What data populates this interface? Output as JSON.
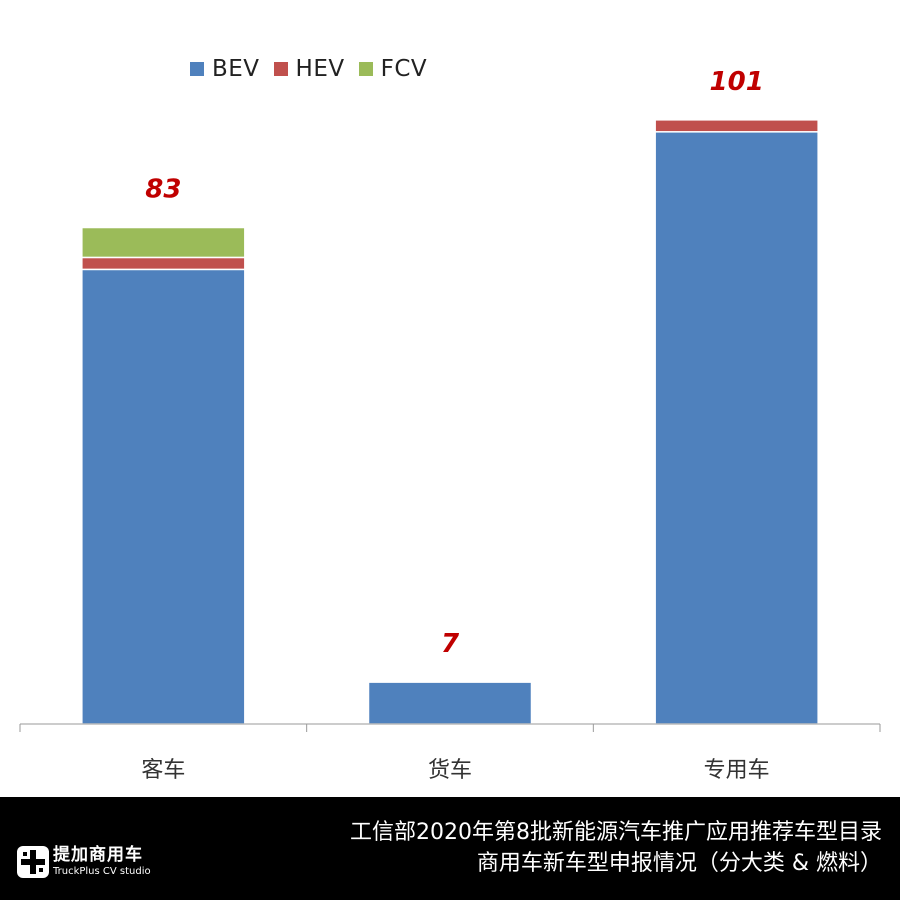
{
  "chart_data": {
    "type": "bar",
    "stacked": true,
    "categories": [
      "客车",
      "货车",
      "专用车"
    ],
    "series": [
      {
        "name": "BEV",
        "color": "#4F81BD",
        "values": [
          76,
          7,
          99
        ]
      },
      {
        "name": "HEV",
        "color": "#C0504D",
        "values": [
          2,
          0,
          2
        ]
      },
      {
        "name": "FCV",
        "color": "#9BBB59",
        "values": [
          5,
          0,
          0
        ]
      }
    ],
    "totals": [
      83,
      7,
      101
    ],
    "total_label_color": "#C00000",
    "ylim": [
      0,
      110
    ],
    "grid": false,
    "legend_position": "top-left"
  },
  "legend": [
    {
      "label": "BEV",
      "color": "#4F81BD"
    },
    {
      "label": "HEV",
      "color": "#C0504D"
    },
    {
      "label": "FCV",
      "color": "#9BBB59"
    }
  ],
  "footer": {
    "title_line1": "工信部2020年第8批新能源汽车推广应用推荐车型目录",
    "title_line2": "商用车新车型申报情况（分大类 & 燃料）",
    "logo_cn": "提加商用车",
    "logo_en": "TruckPlus CV studio",
    "logo_icon": "truckplus-logo-icon"
  }
}
